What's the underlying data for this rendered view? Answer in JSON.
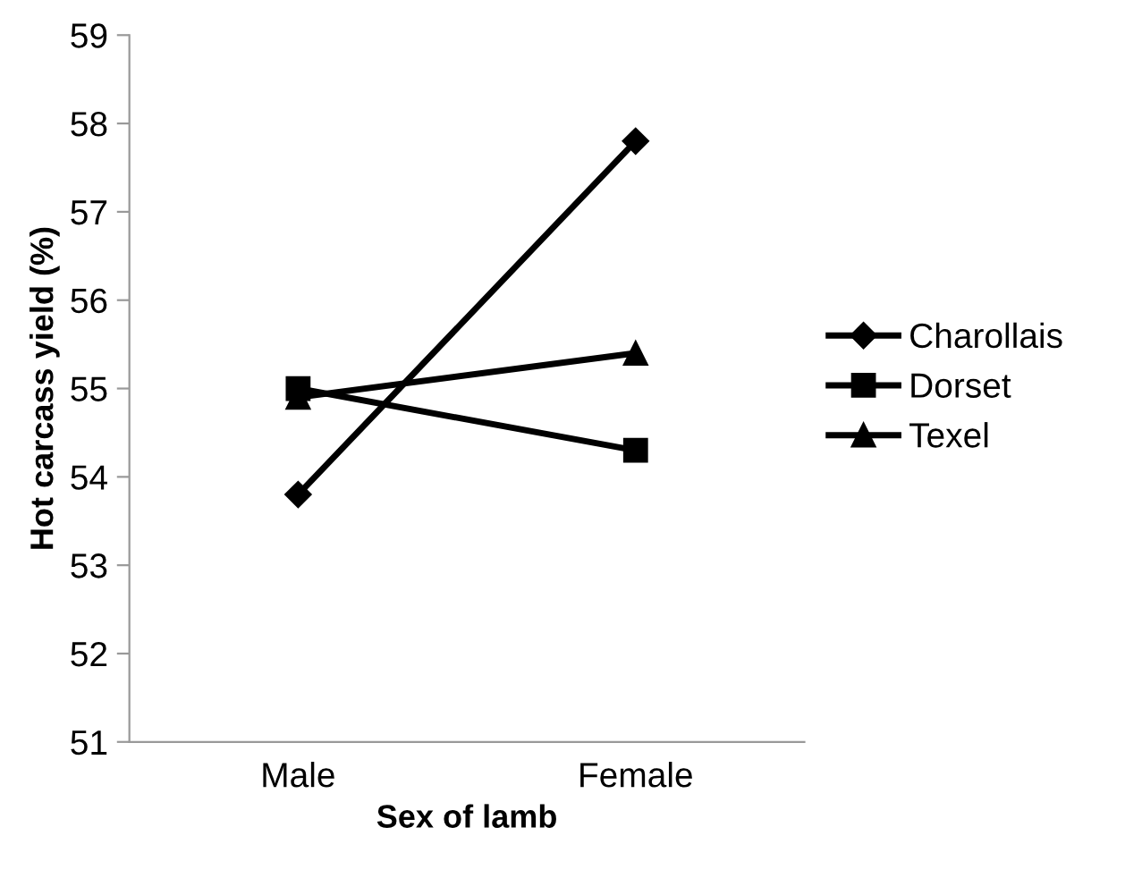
{
  "chart_data": {
    "type": "line",
    "xlabel": "Sex of lamb",
    "ylabel": "Hot carcass yield (%)",
    "categories": [
      "Male",
      "Female"
    ],
    "series": [
      {
        "name": "Charollais",
        "color": "#000000",
        "values": [
          53.8,
          57.8
        ],
        "marker": "diamond"
      },
      {
        "name": "Dorset",
        "color": "#000000",
        "values": [
          55.0,
          54.3
        ],
        "marker": "square"
      },
      {
        "name": "Texel",
        "color": "#000000",
        "values": [
          54.9,
          55.4
        ],
        "marker": "triangle"
      }
    ],
    "ylim": [
      51,
      59
    ],
    "yticks": [
      51,
      52,
      53,
      54,
      55,
      56,
      57,
      58,
      59
    ],
    "grid": false,
    "legend": "right",
    "line_style": "solid"
  }
}
